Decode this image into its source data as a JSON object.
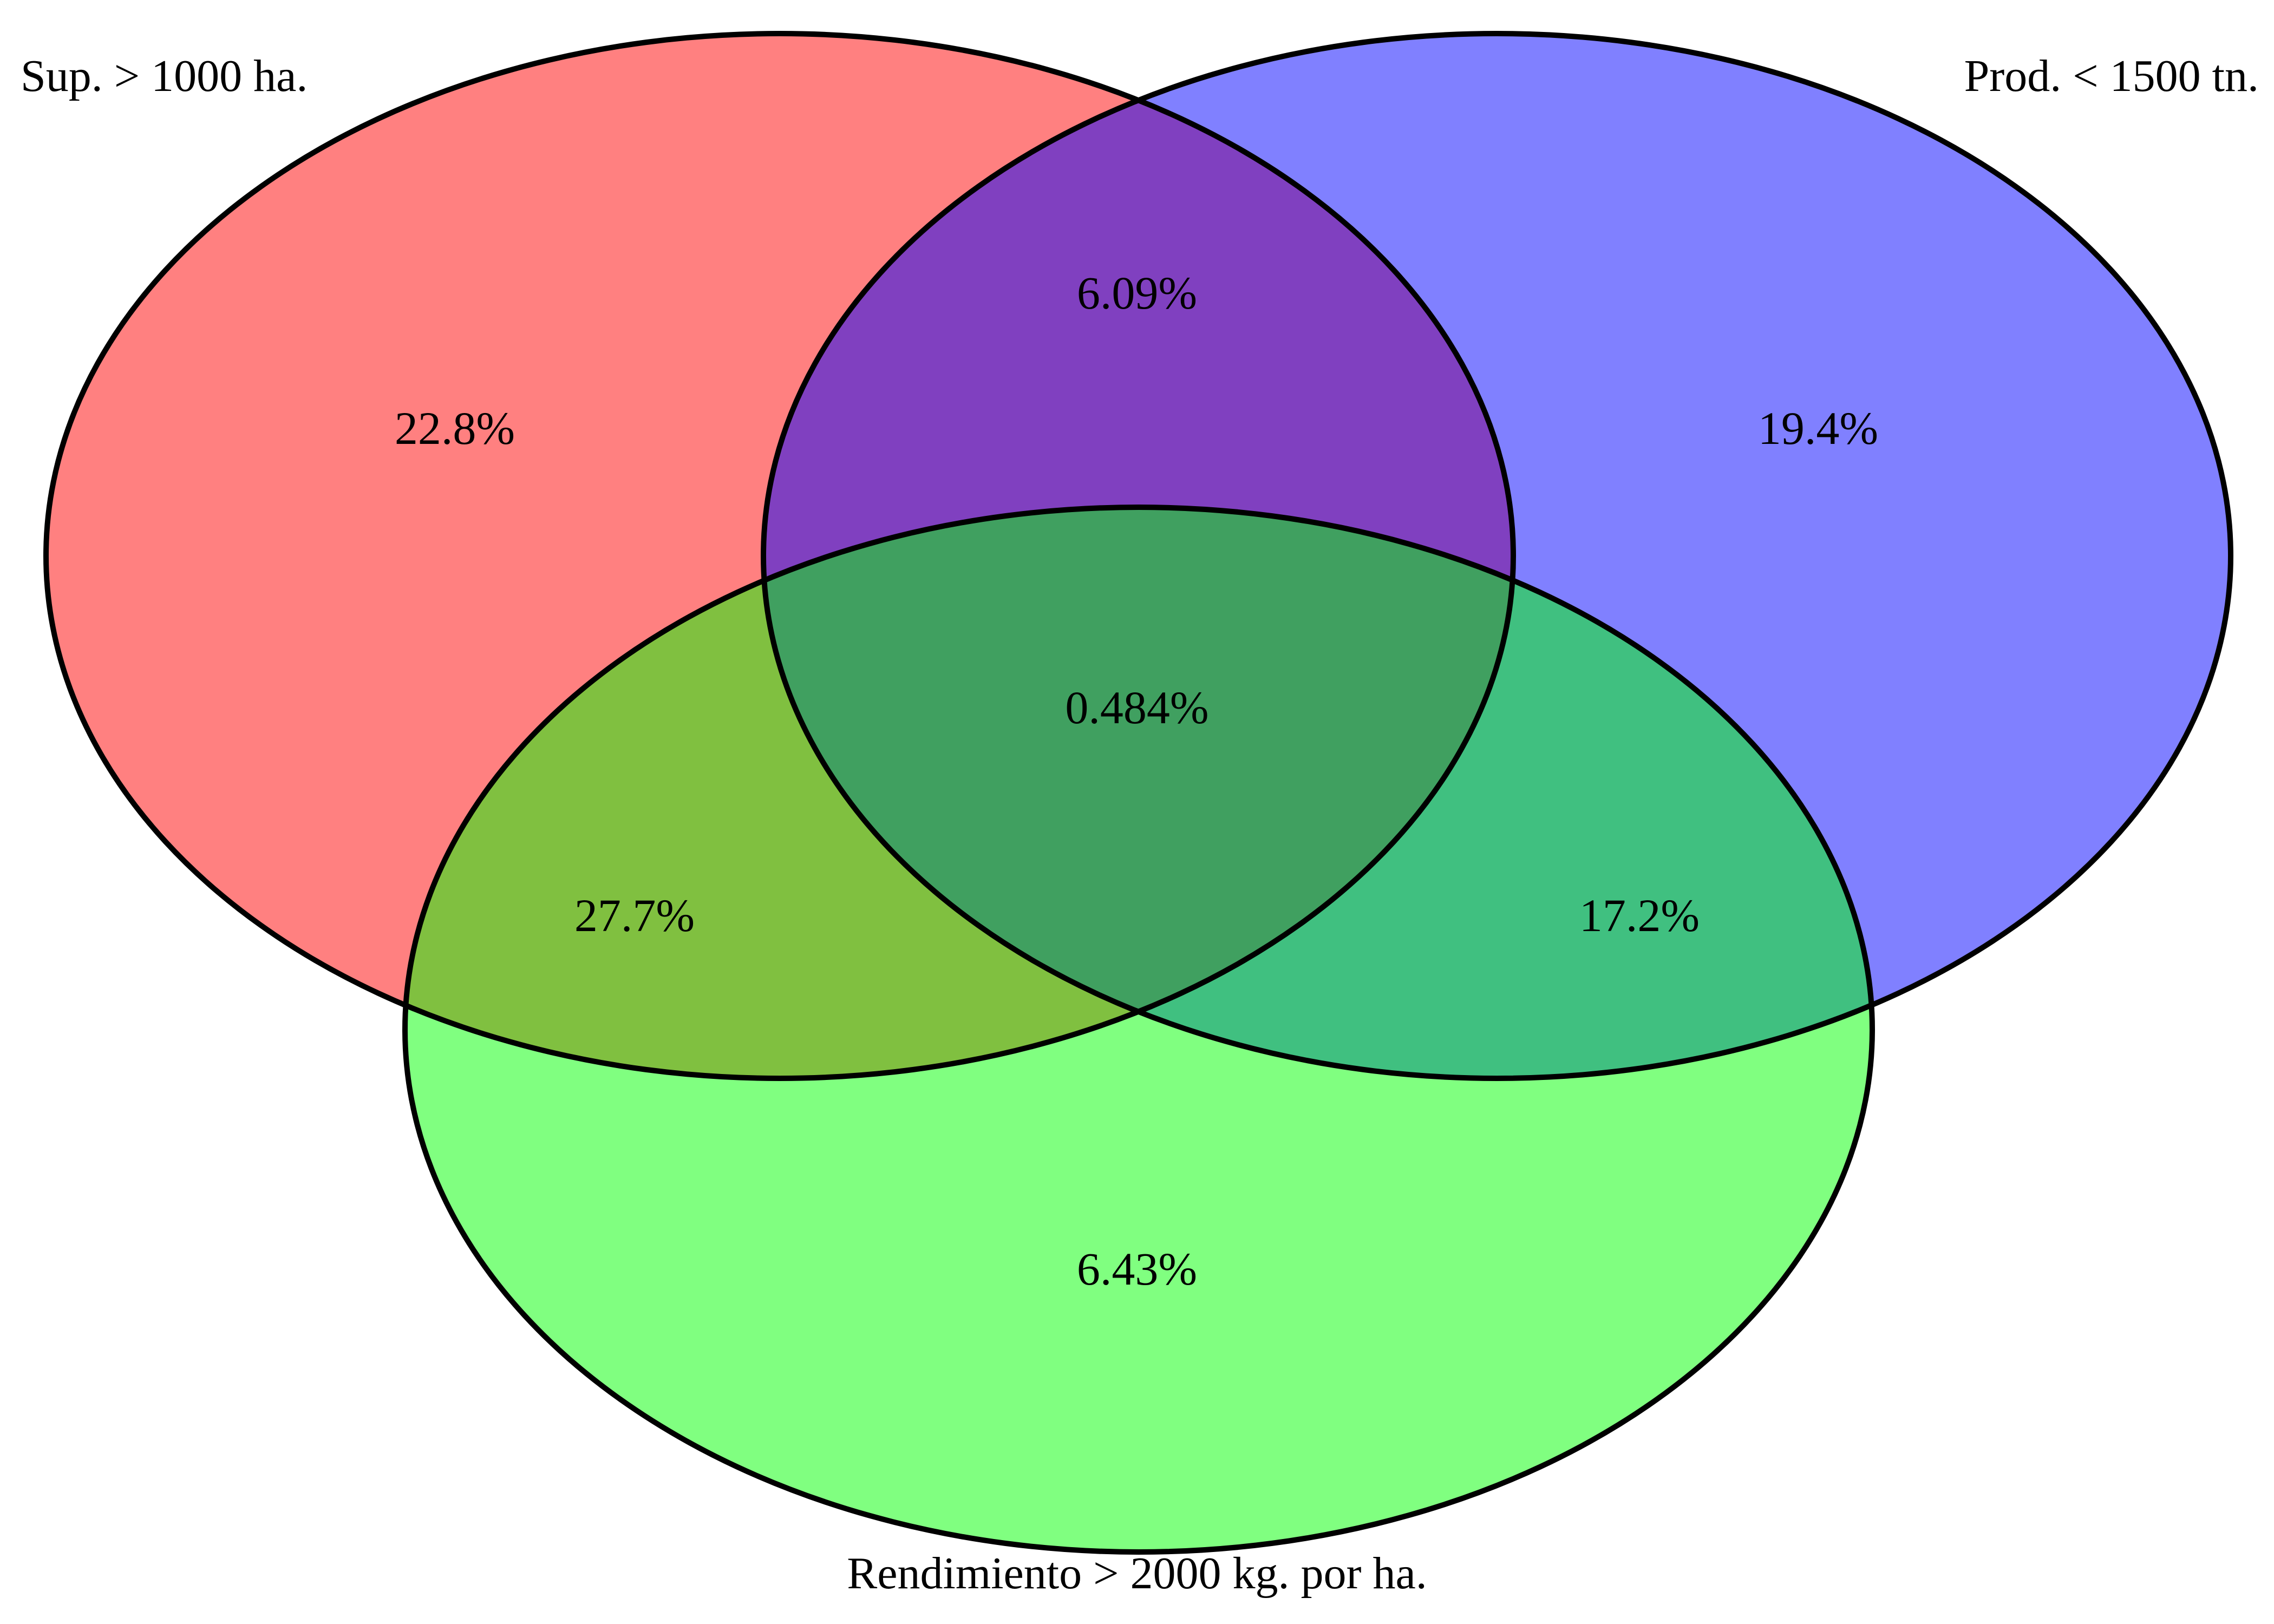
{
  "diagram": {
    "type": "venn3",
    "outline_color": "#000000",
    "sets": [
      {
        "id": "A",
        "label": "Sup. > 1000 ha.",
        "color": "#ff8080"
      },
      {
        "id": "B",
        "label": "Prod. < 1500 tn.",
        "color": "#8080ff"
      },
      {
        "id": "C",
        "label": "Rendimiento > 2000 kg. por ha.",
        "color": "#80ff80"
      }
    ],
    "regions": {
      "A_only": "22.8%",
      "B_only": "19.4%",
      "C_only": "6.43%",
      "AB_only": "6.09%",
      "AC_only": "27.7%",
      "BC_only": "17.2%",
      "ABC": "0.484%"
    },
    "region_colors": {
      "AB": "#8040c0",
      "AC": "#80c040",
      "BC": "#40c080",
      "ABC": "#40a060"
    }
  }
}
